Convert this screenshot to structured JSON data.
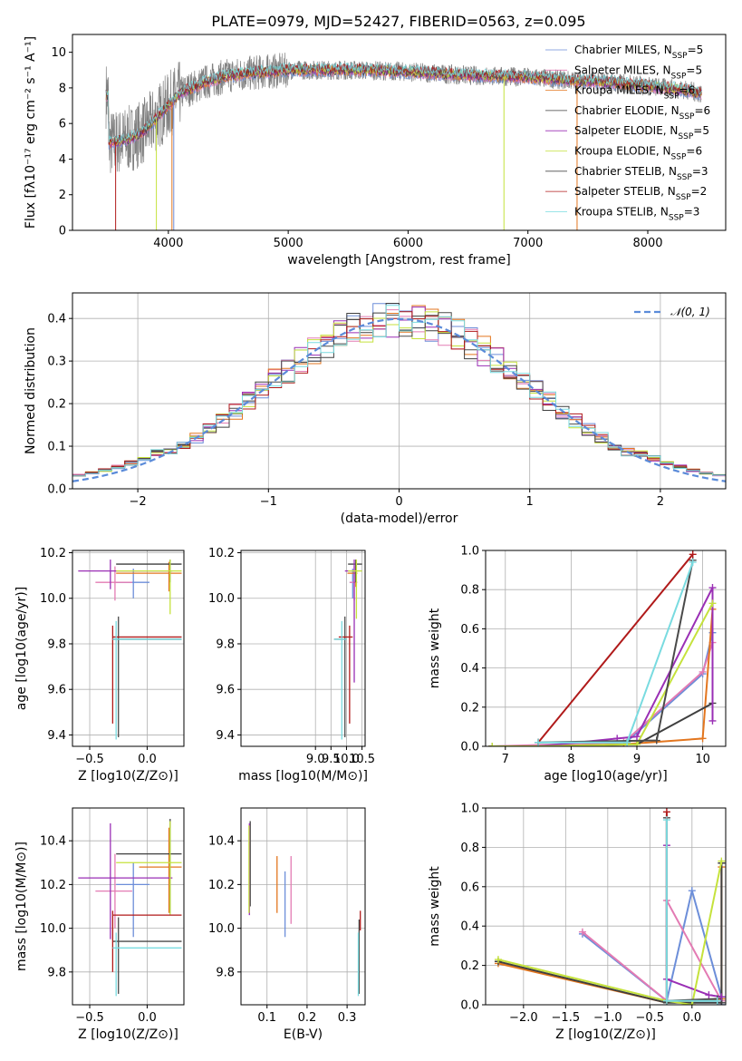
{
  "title": "PLATE=0979, MJD=52427, FIBERID=0563, z=0.095",
  "colors": {
    "Chabrier MILES": "#6c8ed9",
    "Salpeter MILES": "#e37bb3",
    "Kroupa MILES": "#e3761f",
    "Chabrier ELODIE": "#3f3f3f",
    "Salpeter ELODIE": "#9a2fb5",
    "Kroupa ELODIE": "#c5e23c",
    "Chabrier STELIB": "#4a4a4a",
    "Salpeter STELIB": "#b01a1a",
    "Kroupa STELIB": "#79dbe0",
    "observed": "#808080"
  },
  "chart_data": [
    {
      "id": "spectrum",
      "type": "line",
      "xlabel": "wavelength [Angstrom, rest frame]",
      "ylabel": "Flux [fλ10⁻¹⁷ erg cm⁻² s⁻¹ A⁻¹]",
      "xlim": [
        3200,
        8650
      ],
      "ylim": [
        0,
        11
      ],
      "xticks": [
        4000,
        5000,
        6000,
        7000,
        8000
      ],
      "yticks": [
        0,
        2,
        4,
        6,
        8,
        10
      ],
      "continuum": {
        "x": [
          3500,
          3600,
          3700,
          3800,
          3900,
          4000,
          4100,
          4300,
          4500,
          4800,
          5000,
          5300,
          5600,
          6000,
          6500,
          7000,
          7400,
          7700,
          8000,
          8300,
          8500
        ],
        "y": [
          4.9,
          5.0,
          5.2,
          5.6,
          6.3,
          7.0,
          7.7,
          8.3,
          8.7,
          8.9,
          9.0,
          9.0,
          9.0,
          8.9,
          8.7,
          8.6,
          8.4,
          8.3,
          8.1,
          7.9,
          7.6
        ]
      },
      "legend": [
        {
          "name": "Chabrier MILES",
          "nssp": "5"
        },
        {
          "name": "Salpeter MILES",
          "nssp": "5"
        },
        {
          "name": "Kroupa MILES",
          "nssp": "6"
        },
        {
          "name": "Chabrier ELODIE",
          "nssp": "6"
        },
        {
          "name": "Salpeter ELODIE",
          "nssp": "5"
        },
        {
          "name": "Kroupa ELODIE",
          "nssp": "6"
        },
        {
          "name": "Chabrier STELIB",
          "nssp": "3"
        },
        {
          "name": "Salpeter STELIB",
          "nssp": "2"
        },
        {
          "name": "Kroupa STELIB",
          "nssp": "3"
        }
      ]
    },
    {
      "id": "residuals",
      "type": "line",
      "xlabel": "(data-model)/error",
      "ylabel": "Normed distribution",
      "xlim": [
        -2.5,
        2.5
      ],
      "ylim": [
        0,
        0.46
      ],
      "xticks": [
        -2,
        -1,
        0,
        1,
        2
      ],
      "yticks": [
        0.0,
        0.1,
        0.2,
        0.3,
        0.4
      ],
      "legend_label": "𝒩(0, 1)",
      "bins": 50
    },
    {
      "id": "age_vs_Z",
      "type": "scatter",
      "xlabel": "Z [log10(Z/Z⊙)]",
      "ylabel": "age  [log10(age/yr)]",
      "xlim": [
        -0.65,
        0.32
      ],
      "ylim": [
        9.35,
        10.21
      ],
      "xticks": [
        -0.5,
        0.0
      ],
      "yticks": [
        9.4,
        9.6,
        9.8,
        10.0,
        10.2
      ],
      "points": [
        {
          "model": "Chabrier MILES",
          "x": -0.12,
          "y": 10.07,
          "xl": -0.27,
          "xh": 0.02,
          "yl": 10.0,
          "yh": 10.13
        },
        {
          "model": "Salpeter MILES",
          "x": -0.28,
          "y": 10.07,
          "xl": -0.45,
          "xh": -0.13,
          "yl": 9.99,
          "yh": 10.14
        },
        {
          "model": "Kroupa MILES",
          "x": 0.19,
          "y": 10.11,
          "xl": -0.27,
          "xh": 0.3,
          "yl": 10.03,
          "yh": 10.16
        },
        {
          "model": "Chabrier ELODIE",
          "x": 0.2,
          "y": 10.15,
          "xl": -0.27,
          "xh": 0.3,
          "yl": 10.07,
          "yh": 10.17
        },
        {
          "model": "Salpeter ELODIE",
          "x": -0.32,
          "y": 10.12,
          "xl": -0.6,
          "xh": 0.22,
          "yl": 10.04,
          "yh": 10.17
        },
        {
          "model": "Kroupa ELODIE",
          "x": 0.2,
          "y": 10.12,
          "xl": -0.27,
          "xh": 0.3,
          "yl": 9.93,
          "yh": 10.17
        },
        {
          "model": "Chabrier STELIB",
          "x": -0.25,
          "y": 9.82,
          "xl": -0.3,
          "xh": 0.3,
          "yl": 9.39,
          "yh": 9.92
        },
        {
          "model": "Salpeter STELIB",
          "x": -0.3,
          "y": 9.83,
          "xl": -0.3,
          "xh": 0.3,
          "yl": 9.45,
          "yh": 9.88
        },
        {
          "model": "Kroupa STELIB",
          "x": -0.27,
          "y": 9.82,
          "xl": -0.3,
          "xh": 0.3,
          "yl": 9.38,
          "yh": 9.9
        }
      ]
    },
    {
      "id": "age_vs_mass",
      "type": "scatter",
      "xlabel": "mass [log10(M/M⊙)]",
      "xlim": [
        6.6,
        10.6
      ],
      "ylim": [
        9.35,
        10.21
      ],
      "xticks": [
        7.5,
        10.0,
        10.5
      ],
      "xticks_drawn": [
        9.0,
        9.5,
        10.0,
        10.5
      ],
      "yticks": [
        9.4,
        9.6,
        9.8,
        10.0,
        10.2
      ],
      "points": [
        {
          "model": "Chabrier MILES",
          "x": 10.2,
          "y": 10.07,
          "xl": 10.1,
          "xh": 10.3,
          "yl": 10.0,
          "yh": 10.13
        },
        {
          "model": "Salpeter MILES",
          "x": 10.25,
          "y": 10.07,
          "xl": 10.1,
          "xh": 10.35,
          "yl": 9.99,
          "yh": 10.14
        },
        {
          "model": "Kroupa MILES",
          "x": 10.3,
          "y": 10.11,
          "xl": 10.03,
          "xh": 10.35,
          "yl": 10.05,
          "yh": 10.16
        },
        {
          "model": "Chabrier ELODIE",
          "x": 10.3,
          "y": 10.15,
          "xl": 10.05,
          "xh": 10.5,
          "yl": 10.07,
          "yh": 10.17
        },
        {
          "model": "Salpeter ELODIE",
          "x": 10.25,
          "y": 10.12,
          "xl": 9.95,
          "xh": 10.35,
          "yl": 9.63,
          "yh": 10.17
        },
        {
          "model": "Kroupa ELODIE",
          "x": 10.32,
          "y": 10.12,
          "xl": 10.05,
          "xh": 10.5,
          "yl": 9.91,
          "yh": 10.17
        },
        {
          "model": "Chabrier STELIB",
          "x": 9.95,
          "y": 9.82,
          "xl": 9.6,
          "xh": 10.0,
          "yl": 9.39,
          "yh": 9.92
        },
        {
          "model": "Salpeter STELIB",
          "x": 10.1,
          "y": 9.83,
          "xl": 9.75,
          "xh": 10.2,
          "yl": 9.45,
          "yh": 9.88
        },
        {
          "model": "Kroupa STELIB",
          "x": 9.85,
          "y": 9.82,
          "xl": 9.6,
          "xh": 10.0,
          "yl": 9.38,
          "yh": 9.9
        }
      ]
    },
    {
      "id": "massweight_vs_age",
      "type": "line",
      "xlabel": "age  [log10(age/yr)]",
      "ylabel": "mass weight",
      "xlim": [
        6.7,
        10.35
      ],
      "ylim": [
        0,
        1.0
      ],
      "xticks": [
        7,
        8,
        9,
        10
      ],
      "yticks": [
        0.0,
        0.2,
        0.4,
        0.6,
        0.8,
        1.0
      ],
      "series": [
        {
          "model": "Chabrier MILES",
          "x": [
            6.8,
            8.8,
            10.0,
            10.15
          ],
          "y": [
            0.0,
            0.01,
            0.37,
            0.58
          ]
        },
        {
          "model": "Salpeter MILES",
          "x": [
            6.8,
            8.8,
            10.0,
            10.15
          ],
          "y": [
            0.0,
            0.02,
            0.38,
            0.53
          ]
        },
        {
          "model": "Kroupa MILES",
          "x": [
            6.8,
            7.5,
            8.8,
            10.0,
            10.15
          ],
          "y": [
            0.0,
            0.0,
            0.01,
            0.04,
            0.7
          ]
        },
        {
          "model": "Chabrier ELODIE",
          "x": [
            6.8,
            7.5,
            9.0,
            10.15
          ],
          "y": [
            0.0,
            0.0,
            0.01,
            0.22
          ]
        },
        {
          "model": "Salpeter ELODIE",
          "x": [
            7.5,
            8.7,
            9.0,
            10.15,
            10.15
          ],
          "y": [
            0.0,
            0.04,
            0.05,
            0.81,
            0.13
          ]
        },
        {
          "model": "Kroupa ELODIE",
          "x": [
            6.8,
            7.5,
            9.0,
            10.15
          ],
          "y": [
            0.0,
            0.0,
            0.01,
            0.73
          ]
        },
        {
          "model": "Chabrier STELIB",
          "x": [
            7.5,
            9.3,
            9.85
          ],
          "y": [
            0.02,
            0.03,
            0.95
          ]
        },
        {
          "model": "Salpeter STELIB",
          "x": [
            7.5,
            9.85
          ],
          "y": [
            0.02,
            0.98
          ]
        },
        {
          "model": "Kroupa STELIB",
          "x": [
            7.5,
            8.85,
            9.85
          ],
          "y": [
            0.02,
            0.02,
            0.94
          ]
        }
      ]
    },
    {
      "id": "mass_vs_Z",
      "type": "scatter",
      "xlabel": "Z [log10(Z/Z⊙)]",
      "ylabel": "mass [log10(M/M⊙)]",
      "xlim": [
        -0.65,
        0.32
      ],
      "ylim": [
        9.65,
        10.55
      ],
      "xticks": [
        -0.5,
        0.0
      ],
      "yticks": [
        9.8,
        10.0,
        10.2,
        10.4
      ],
      "points": [
        {
          "model": "Chabrier MILES",
          "x": -0.12,
          "y": 10.2,
          "xl": -0.27,
          "xh": 0.02,
          "yl": 9.96,
          "yh": 10.3
        },
        {
          "model": "Salpeter MILES",
          "x": -0.28,
          "y": 10.17,
          "xl": -0.45,
          "xh": -0.13,
          "yl": 10.0,
          "yh": 10.34
        },
        {
          "model": "Kroupa MILES",
          "x": 0.19,
          "y": 10.28,
          "xl": -0.07,
          "xh": 0.3,
          "yl": 10.07,
          "yh": 10.46
        },
        {
          "model": "Chabrier ELODIE",
          "x": 0.2,
          "y": 10.34,
          "xl": -0.27,
          "xh": 0.3,
          "yl": 10.07,
          "yh": 10.5
        },
        {
          "model": "Salpeter ELODIE",
          "x": -0.32,
          "y": 10.23,
          "xl": -0.6,
          "xh": 0.22,
          "yl": 9.95,
          "yh": 10.48
        },
        {
          "model": "Kroupa ELODIE",
          "x": 0.2,
          "y": 10.3,
          "xl": -0.27,
          "xh": 0.3,
          "yl": 10.06,
          "yh": 10.49
        },
        {
          "model": "Chabrier STELIB",
          "x": -0.25,
          "y": 9.94,
          "xl": -0.3,
          "xh": 0.3,
          "yl": 9.7,
          "yh": 10.05
        },
        {
          "model": "Salpeter STELIB",
          "x": -0.3,
          "y": 10.06,
          "xl": -0.3,
          "xh": 0.3,
          "yl": 9.8,
          "yh": 10.08
        },
        {
          "model": "Kroupa STELIB",
          "x": -0.27,
          "y": 9.91,
          "xl": -0.3,
          "xh": 0.3,
          "yl": 9.69,
          "yh": 9.98
        }
      ]
    },
    {
      "id": "mass_vs_ebv",
      "type": "scatter",
      "xlabel": "E(B-V)",
      "xlim": [
        0.035,
        0.345
      ],
      "ylim": [
        9.65,
        10.55
      ],
      "xticks": [
        0.1,
        0.2,
        0.3
      ],
      "yticks": [
        9.8,
        10.0,
        10.2,
        10.4
      ],
      "points": [
        {
          "model": "Chabrier MILES",
          "x": 0.145,
          "yl": 9.96,
          "yh": 10.26
        },
        {
          "model": "Salpeter MILES",
          "x": 0.16,
          "yl": 10.02,
          "yh": 10.33
        },
        {
          "model": "Kroupa MILES",
          "x": 0.125,
          "yl": 10.07,
          "yh": 10.33
        },
        {
          "model": "Chabrier ELODIE",
          "x": 0.058,
          "yl": 10.1,
          "yh": 10.49
        },
        {
          "model": "Salpeter ELODIE",
          "x": 0.056,
          "yl": 10.06,
          "yh": 10.48
        },
        {
          "model": "Kroupa ELODIE",
          "x": 0.055,
          "yl": 10.07,
          "yh": 10.47
        },
        {
          "model": "Chabrier STELIB",
          "x": 0.33,
          "yl": 9.7,
          "yh": 10.04
        },
        {
          "model": "Salpeter STELIB",
          "x": 0.333,
          "yl": 9.99,
          "yh": 10.08
        },
        {
          "model": "Kroupa STELIB",
          "x": 0.328,
          "yl": 9.69,
          "yh": 9.98
        }
      ]
    },
    {
      "id": "massweight_vs_Z",
      "type": "line",
      "xlabel": "Z [log10(Z/Z⊙)]",
      "ylabel": "mass weight",
      "xlim": [
        -2.45,
        0.4
      ],
      "ylim": [
        0,
        1.0
      ],
      "xticks": [
        -2.0,
        -1.5,
        -1.0,
        -0.5,
        0.0
      ],
      "yticks": [
        0.0,
        0.2,
        0.4,
        0.6,
        0.8,
        1.0
      ],
      "series": [
        {
          "model": "Chabrier MILES",
          "x": [
            -1.3,
            -0.3,
            0.0,
            0.35,
            0.35
          ],
          "y": [
            0.36,
            0.02,
            0.58,
            0.04,
            0.0
          ]
        },
        {
          "model": "Salpeter MILES",
          "x": [
            -1.3,
            -0.3,
            -0.3,
            0.35
          ],
          "y": [
            0.37,
            0.02,
            0.53,
            0.02
          ]
        },
        {
          "model": "Kroupa MILES",
          "x": [
            -2.3,
            -0.3,
            0.35,
            0.35
          ],
          "y": [
            0.21,
            0.01,
            0.03,
            0.7
          ]
        },
        {
          "model": "Chabrier ELODIE",
          "x": [
            -2.3,
            -0.3,
            0.35,
            0.35
          ],
          "y": [
            0.22,
            0.01,
            0.01,
            0.72
          ]
        },
        {
          "model": "Salpeter ELODIE",
          "x": [
            -0.3,
            -0.3,
            0.2,
            0.35
          ],
          "y": [
            0.81,
            0.13,
            0.05,
            0.04
          ]
        },
        {
          "model": "Kroupa ELODIE",
          "x": [
            -2.3,
            -0.3,
            0.0,
            0.35
          ],
          "y": [
            0.23,
            0.02,
            0.0,
            0.73
          ]
        },
        {
          "model": "Chabrier STELIB",
          "x": [
            -0.3,
            -0.3,
            0.3
          ],
          "y": [
            0.95,
            0.02,
            0.03
          ]
        },
        {
          "model": "Salpeter STELIB",
          "x": [
            -0.3,
            -0.3
          ],
          "y": [
            0.98,
            0.02
          ]
        },
        {
          "model": "Kroupa STELIB",
          "x": [
            -0.3,
            -0.3,
            0.3
          ],
          "y": [
            0.94,
            0.02,
            0.02
          ]
        }
      ]
    }
  ]
}
